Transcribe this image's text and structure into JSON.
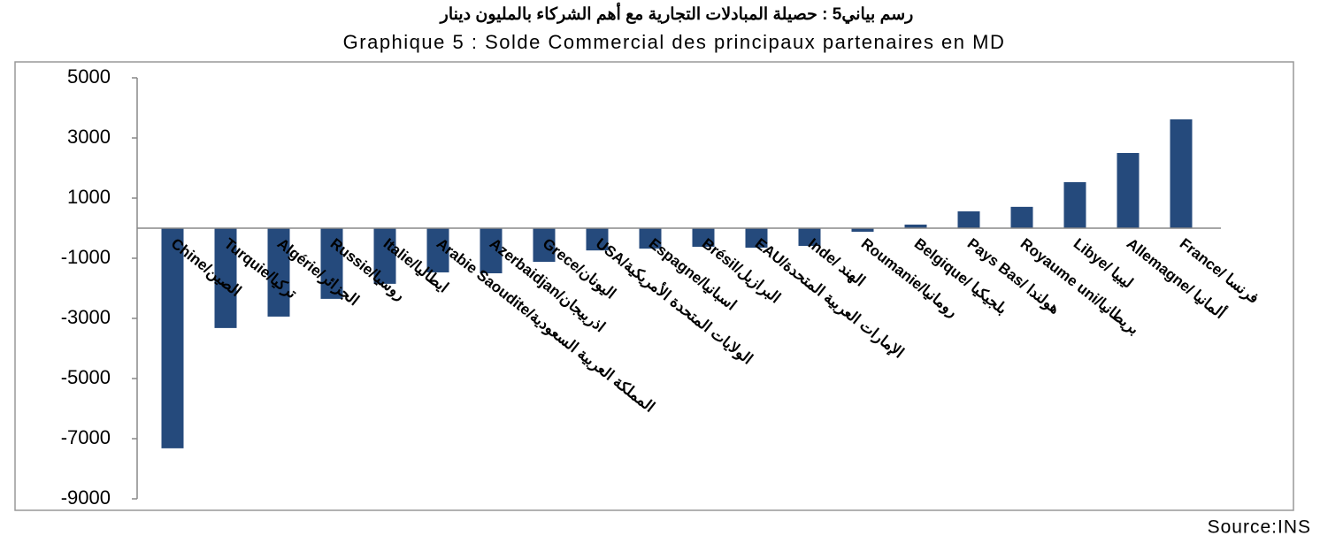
{
  "chart_data": {
    "type": "bar",
    "title": "رسم بياني5 : حصيلة المبادلات التجارية مع أهم الشركاء بالمليون دينار",
    "subtitle": "Graphique 5 : Solde Commercial des principaux partenaires en MD",
    "source": "Source:INS",
    "categories": [
      "Chine/الصين",
      "Turquie/تركيا",
      "Algérie/الجزائر",
      "Russie/روسيا",
      "Italie/ايطاليا",
      "Arabie Saoudite/المملكة العربية السعودية",
      "Azerbaidjan/اذربيجان",
      "Grece/اليونان",
      "USA/الولايات المتحدة الأمريكية",
      "Espagne/اسبانيا",
      "Brésil/البرازيل",
      "EAU/الإمارات العربية المتحدة",
      "Inde/ الهند",
      "Roumanie/رومانيا",
      "Belgique/ بلجيكيا",
      "Pays Bas/ هولندا",
      "Royaume uni/بريطانيا",
      "Libye/ ليبيا",
      "Allemagne/ ألمانيا",
      "France/ فرنسا"
    ],
    "values": [
      -7320,
      -3320,
      -2940,
      -2350,
      -1850,
      -1470,
      -1500,
      -1120,
      -740,
      -680,
      -620,
      -650,
      -590,
      -120,
      120,
      560,
      710,
      1530,
      2500,
      3620
    ],
    "color": "#254a7c",
    "ylim": [
      -9000,
      5000
    ],
    "yticks": [
      5000,
      3000,
      1000,
      -1000,
      -3000,
      -5000,
      -7000,
      -9000
    ],
    "grid": false
  }
}
